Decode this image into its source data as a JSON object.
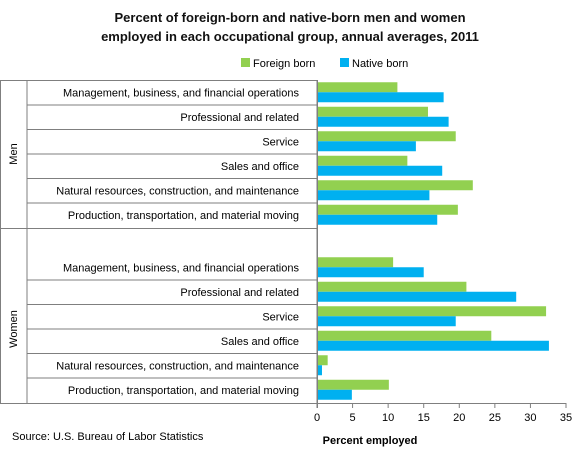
{
  "chart_data": {
    "type": "bar",
    "orientation": "horizontal",
    "title_lines": [
      "Percent of foreign-born and native-born men and women",
      "employed in each occupational group, annual averages, 2011"
    ],
    "xlabel": "Percent employed",
    "xlim": [
      0,
      35
    ],
    "xticks": [
      0,
      5,
      10,
      15,
      20,
      25,
      30,
      35
    ],
    "legend_position": "top",
    "source": "Source: U.S. Bureau of Labor Statistics",
    "series": [
      {
        "name": "Foreign born",
        "color": "#92d050"
      },
      {
        "name": "Native born",
        "color": "#00b0f0"
      }
    ],
    "groups": [
      {
        "name": "Men",
        "categories": [
          {
            "label": "Management, business, and financial operations",
            "foreign_born": 11.3,
            "native_born": 17.8
          },
          {
            "label": "Professional and related",
            "foreign_born": 15.6,
            "native_born": 18.5
          },
          {
            "label": "Service",
            "foreign_born": 19.5,
            "native_born": 13.9
          },
          {
            "label": "Sales and office",
            "foreign_born": 12.7,
            "native_born": 17.6
          },
          {
            "label": "Natural resources, construction, and maintenance",
            "foreign_born": 21.9,
            "native_born": 15.8
          },
          {
            "label": "Production, transportation, and material moving",
            "foreign_born": 19.8,
            "native_born": 16.9
          }
        ]
      },
      {
        "name": "Women",
        "categories": [
          {
            "label": "Management, business, and financial operations",
            "foreign_born": 10.7,
            "native_born": 15.0
          },
          {
            "label": "Professional and related",
            "foreign_born": 21.0,
            "native_born": 28.0
          },
          {
            "label": "Service",
            "foreign_born": 32.2,
            "native_born": 19.5
          },
          {
            "label": "Sales and office",
            "foreign_born": 24.5,
            "native_born": 32.6
          },
          {
            "label": "Natural resources, construction, and maintenance",
            "foreign_born": 1.5,
            "native_born": 0.7
          },
          {
            "label": "Production, transportation, and material moving",
            "foreign_born": 10.1,
            "native_born": 4.9
          }
        ]
      }
    ]
  }
}
